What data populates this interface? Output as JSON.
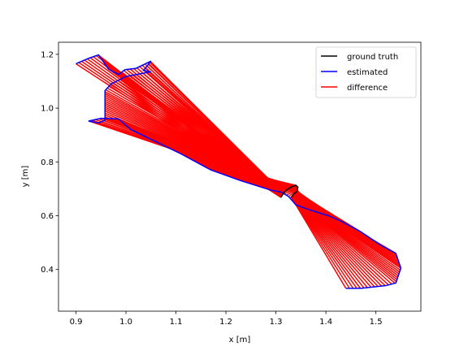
{
  "chart_data": {
    "type": "line",
    "xlabel": "x [m]",
    "ylabel": "y [m]",
    "xlim": [
      0.865,
      1.59
    ],
    "ylim": [
      0.245,
      1.245
    ],
    "xticks": [
      "0.9",
      "1.0",
      "1.1",
      "1.2",
      "1.3",
      "1.4",
      "1.5"
    ],
    "yticks": [
      "0.4",
      "0.6",
      "0.8",
      "1.0",
      "1.2"
    ],
    "grid": false,
    "legend_position": "top-right",
    "legend": [
      "ground truth",
      "estimated",
      "difference"
    ],
    "series": [
      {
        "name": "ground truth",
        "color": "#000000",
        "x": [
          1.31,
          1.315,
          1.322,
          1.332,
          1.34,
          1.344,
          1.342,
          1.335,
          1.331
        ],
        "y": [
          0.668,
          0.683,
          0.697,
          0.708,
          0.713,
          0.706,
          0.69,
          0.68,
          0.668
        ]
      },
      {
        "name": "estimated",
        "color": "#0000ff",
        "x": [
          0.9,
          0.925,
          0.945,
          0.965,
          0.985,
          0.998,
          1.02,
          1.05,
          1.035,
          1.05,
          1.0,
          0.97,
          0.958,
          0.958,
          0.945,
          0.925,
          0.95,
          0.985,
          1.01,
          1.06,
          1.11,
          1.17,
          1.23,
          1.29,
          1.31,
          1.325,
          1.34,
          1.37,
          1.405,
          1.43,
          1.47,
          1.51,
          1.54,
          1.55,
          1.54,
          1.52,
          1.47,
          1.44
        ],
        "y": [
          1.165,
          1.185,
          1.198,
          1.145,
          1.125,
          1.143,
          1.148,
          1.175,
          1.14,
          1.135,
          1.118,
          1.09,
          1.065,
          0.955,
          0.945,
          0.952,
          0.962,
          0.96,
          0.92,
          0.875,
          0.83,
          0.77,
          0.73,
          0.695,
          0.688,
          0.672,
          0.64,
          0.62,
          0.6,
          0.58,
          0.54,
          0.49,
          0.46,
          0.405,
          0.35,
          0.34,
          0.33,
          0.33
        ]
      },
      {
        "name": "difference",
        "color": "#ff0000"
      }
    ]
  }
}
